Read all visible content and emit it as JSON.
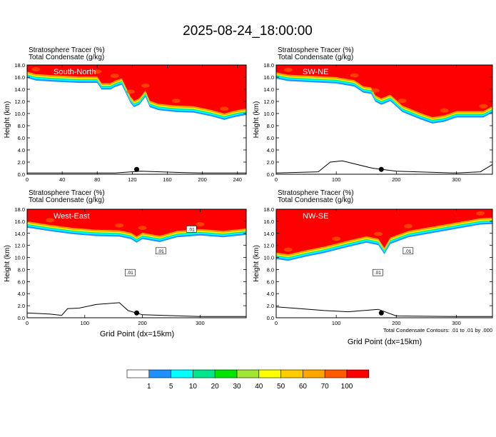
{
  "title": "2025-08-24_18:00:00",
  "panel_header": {
    "line1": "Stratosphere Tracer    (%)",
    "line2": "Total Condensate    (g/kg)"
  },
  "ylabel": "Height (km)",
  "xlabel": "Grid Point (dx=15km)",
  "footnote": "Total Condensate Contours: .01 to .01 by .000",
  "colors": {
    "bands": [
      "#ffffff",
      "#1e90ff",
      "#00ffff",
      "#00e68c",
      "#00e600",
      "#a0e632",
      "#ffff00",
      "#ffcc00",
      "#ffa500",
      "#ff5a00",
      "#ff0000"
    ]
  },
  "colorbar_labels": [
    "1",
    "5",
    "10",
    "20",
    "30",
    "40",
    "50",
    "60",
    "70",
    "100"
  ],
  "chart_data": [
    {
      "type": "contour",
      "panel": "South-North",
      "xlim": [
        0,
        250
      ],
      "ylim": [
        0,
        18
      ],
      "xticks": [
        0,
        40,
        80,
        120,
        160,
        200,
        240
      ],
      "yticks": [
        0,
        2,
        4,
        6,
        8,
        10,
        12,
        14,
        16,
        18
      ],
      "tracer_boundary": [
        [
          0,
          16.1
        ],
        [
          10,
          15.7
        ],
        [
          30,
          15.5
        ],
        [
          60,
          15.3
        ],
        [
          80,
          15.3
        ],
        [
          85,
          14.2
        ],
        [
          95,
          14.2
        ],
        [
          100,
          14.6
        ],
        [
          108,
          15.0
        ],
        [
          112,
          13.8
        ],
        [
          118,
          12.0
        ],
        [
          122,
          11.3
        ],
        [
          128,
          11.7
        ],
        [
          135,
          13.0
        ],
        [
          140,
          11.3
        ],
        [
          150,
          10.8
        ],
        [
          170,
          10.5
        ],
        [
          190,
          10.4
        ],
        [
          210,
          9.8
        ],
        [
          225,
          9.2
        ],
        [
          235,
          9.6
        ],
        [
          245,
          9.9
        ],
        [
          250,
          10.0
        ]
      ],
      "terrain": [
        [
          0,
          0.2
        ],
        [
          80,
          0.2
        ],
        [
          100,
          0.2
        ],
        [
          130,
          0.5
        ],
        [
          170,
          0.3
        ],
        [
          200,
          0.2
        ],
        [
          250,
          0.2
        ]
      ],
      "marker_x": 125
    },
    {
      "type": "contour",
      "panel": "SW-NE",
      "xlim": [
        0,
        360
      ],
      "ylim": [
        0,
        18
      ],
      "xticks": [
        0,
        100,
        200,
        300
      ],
      "yticks": [
        0,
        2,
        4,
        6,
        8,
        10,
        12,
        14,
        16,
        18
      ],
      "tracer_boundary": [
        [
          0,
          16.0
        ],
        [
          20,
          15.6
        ],
        [
          60,
          15.4
        ],
        [
          100,
          15.2
        ],
        [
          130,
          14.7
        ],
        [
          145,
          13.7
        ],
        [
          158,
          13.5
        ],
        [
          165,
          12.2
        ],
        [
          175,
          11.7
        ],
        [
          190,
          12.3
        ],
        [
          210,
          10.5
        ],
        [
          240,
          9.3
        ],
        [
          260,
          8.6
        ],
        [
          280,
          8.9
        ],
        [
          300,
          9.6
        ],
        [
          330,
          9.6
        ],
        [
          345,
          9.6
        ],
        [
          360,
          10.4
        ]
      ],
      "terrain": [
        [
          0,
          0.2
        ],
        [
          70,
          0.4
        ],
        [
          90,
          2.0
        ],
        [
          110,
          2.2
        ],
        [
          160,
          1.0
        ],
        [
          200,
          0.5
        ],
        [
          300,
          0.2
        ],
        [
          340,
          0.4
        ],
        [
          360,
          1.6
        ]
      ],
      "marker_x": 175
    },
    {
      "type": "contour",
      "panel": "West-East",
      "xlim": [
        0,
        380
      ],
      "ylim": [
        0,
        18
      ],
      "xticks": [
        0,
        100,
        200,
        300
      ],
      "yticks": [
        0,
        2,
        4,
        6,
        8,
        10,
        12,
        14,
        16,
        18
      ],
      "tracer_boundary": [
        [
          0,
          15.2
        ],
        [
          40,
          14.6
        ],
        [
          80,
          14.1
        ],
        [
          120,
          13.8
        ],
        [
          160,
          13.7
        ],
        [
          180,
          13.3
        ],
        [
          190,
          12.7
        ],
        [
          200,
          13.3
        ],
        [
          230,
          12.8
        ],
        [
          260,
          13.6
        ],
        [
          300,
          13.9
        ],
        [
          340,
          13.6
        ],
        [
          380,
          14.0
        ]
      ],
      "terrain": [
        [
          0,
          0.8
        ],
        [
          40,
          0.6
        ],
        [
          60,
          0.4
        ],
        [
          70,
          1.5
        ],
        [
          90,
          1.6
        ],
        [
          120,
          2.2
        ],
        [
          160,
          2.5
        ],
        [
          175,
          1.2
        ],
        [
          200,
          0.5
        ],
        [
          300,
          0.2
        ],
        [
          380,
          0.2
        ]
      ],
      "marker_x": 190,
      "contour_labels": [
        ".01",
        ".01",
        ".01"
      ]
    },
    {
      "type": "contour",
      "panel": "NW-SE",
      "xlim": [
        0,
        360
      ],
      "ylim": [
        0,
        18
      ],
      "xticks": [
        0,
        100,
        200,
        300
      ],
      "yticks": [
        0,
        2,
        4,
        6,
        8,
        10,
        12,
        14,
        16,
        18
      ],
      "tracer_boundary": [
        [
          0,
          10.0
        ],
        [
          20,
          9.7
        ],
        [
          50,
          10.4
        ],
        [
          80,
          11.0
        ],
        [
          100,
          11.5
        ],
        [
          120,
          12.0
        ],
        [
          150,
          12.7
        ],
        [
          170,
          12.3
        ],
        [
          180,
          10.8
        ],
        [
          190,
          12.5
        ],
        [
          220,
          13.6
        ],
        [
          260,
          14.3
        ],
        [
          300,
          15.0
        ],
        [
          340,
          15.7
        ],
        [
          360,
          15.8
        ]
      ],
      "terrain": [
        [
          0,
          1.8
        ],
        [
          40,
          1.5
        ],
        [
          80,
          1.2
        ],
        [
          120,
          1.0
        ],
        [
          170,
          1.4
        ],
        [
          200,
          0.3
        ],
        [
          300,
          0.2
        ],
        [
          360,
          0.2
        ]
      ],
      "marker_x": 175,
      "contour_labels": [
        ".01",
        ".01"
      ]
    }
  ]
}
